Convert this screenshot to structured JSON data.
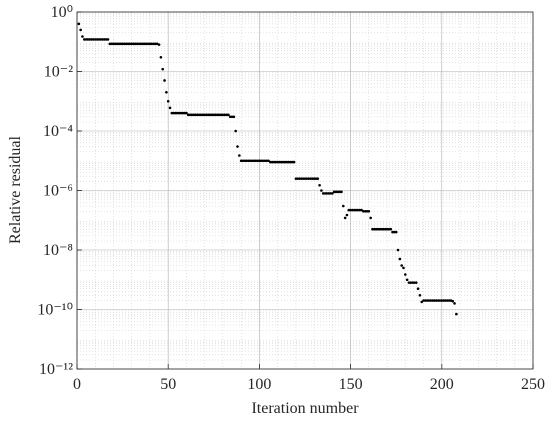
{
  "chart_data": {
    "type": "scatter",
    "xlabel": "Iteration number",
    "ylabel": "Relative residual",
    "color": "#000000",
    "log_y": true,
    "grid": true,
    "minor_grid": true,
    "xlim": [
      0,
      250
    ],
    "xticks": [
      0,
      50,
      100,
      150,
      200,
      250
    ],
    "ylim": [
      1e-12,
      1
    ],
    "yticks": [
      {
        "value": 1,
        "label": "10⁰"
      },
      {
        "value": 0.01,
        "label": "10⁻²"
      },
      {
        "value": 0.0001,
        "label": "10⁻⁴"
      },
      {
        "value": 1e-06,
        "label": "10⁻⁶"
      },
      {
        "value": 1e-08,
        "label": "10⁻⁸"
      },
      {
        "value": 1e-10,
        "label": "10⁻¹⁰"
      },
      {
        "value": 1e-12,
        "label": "10⁻¹²"
      }
    ],
    "x": [
      1,
      2,
      3,
      4,
      5,
      6,
      7,
      8,
      9,
      10,
      11,
      12,
      13,
      14,
      15,
      16,
      17,
      18,
      19,
      20,
      21,
      22,
      23,
      24,
      25,
      26,
      27,
      28,
      29,
      30,
      31,
      32,
      33,
      34,
      35,
      36,
      37,
      38,
      39,
      40,
      41,
      42,
      43,
      44,
      45,
      46,
      47,
      48,
      49,
      50,
      51,
      52,
      53,
      54,
      55,
      56,
      57,
      58,
      59,
      60,
      61,
      62,
      63,
      64,
      65,
      66,
      67,
      68,
      69,
      70,
      71,
      72,
      73,
      74,
      75,
      76,
      77,
      78,
      79,
      80,
      81,
      82,
      83,
      84,
      85,
      86,
      87,
      88,
      89,
      90,
      91,
      92,
      93,
      94,
      95,
      96,
      97,
      98,
      99,
      100,
      101,
      102,
      103,
      104,
      105,
      106,
      107,
      108,
      109,
      110,
      111,
      112,
      113,
      114,
      115,
      116,
      117,
      118,
      119,
      120,
      121,
      122,
      123,
      124,
      125,
      126,
      127,
      128,
      129,
      130,
      131,
      132,
      133,
      134,
      135,
      136,
      137,
      138,
      139,
      140,
      141,
      142,
      143,
      144,
      145,
      146,
      147,
      148,
      149,
      150,
      151,
      152,
      153,
      154,
      155,
      156,
      157,
      158,
      159,
      160,
      161,
      162,
      163,
      164,
      165,
      166,
      167,
      168,
      169,
      170,
      171,
      172,
      173,
      174,
      175,
      176,
      177,
      178,
      179,
      180,
      181,
      182,
      183,
      184,
      185,
      186,
      187,
      188,
      189,
      190,
      191,
      192,
      193,
      194,
      195,
      196,
      197,
      198,
      199,
      200,
      201,
      202,
      203,
      204,
      205,
      206,
      207,
      208
    ],
    "values": [
      0.4,
      0.25,
      0.15,
      0.12,
      0.12,
      0.12,
      0.12,
      0.12,
      0.12,
      0.12,
      0.12,
      0.12,
      0.12,
      0.12,
      0.12,
      0.12,
      0.12,
      0.085,
      0.085,
      0.085,
      0.085,
      0.085,
      0.085,
      0.085,
      0.085,
      0.085,
      0.085,
      0.085,
      0.085,
      0.085,
      0.085,
      0.085,
      0.085,
      0.085,
      0.085,
      0.085,
      0.085,
      0.085,
      0.085,
      0.085,
      0.085,
      0.085,
      0.085,
      0.085,
      0.08,
      0.03,
      0.012,
      0.005,
      0.002,
      0.001,
      0.0006,
      0.0004,
      0.0004,
      0.0004,
      0.0004,
      0.0004,
      0.0004,
      0.0004,
      0.0004,
      0.0004,
      0.00035,
      0.00035,
      0.00035,
      0.00035,
      0.00035,
      0.00035,
      0.00035,
      0.00035,
      0.00035,
      0.00035,
      0.00035,
      0.00035,
      0.00035,
      0.00035,
      0.00035,
      0.00035,
      0.00035,
      0.00035,
      0.00035,
      0.00035,
      0.00035,
      0.00035,
      0.00035,
      0.0003,
      0.0003,
      0.0003,
      0.0001,
      3e-05,
      1.5e-05,
      1e-05,
      1e-05,
      1e-05,
      1e-05,
      1e-05,
      1e-05,
      1e-05,
      1e-05,
      1e-05,
      1e-05,
      1e-05,
      1e-05,
      1e-05,
      1e-05,
      1e-05,
      1e-05,
      9e-06,
      9e-06,
      9e-06,
      9e-06,
      9e-06,
      9e-06,
      9e-06,
      9e-06,
      9e-06,
      9e-06,
      9e-06,
      9e-06,
      9e-06,
      9e-06,
      2.5e-06,
      2.5e-06,
      2.5e-06,
      2.5e-06,
      2.5e-06,
      2.5e-06,
      2.5e-06,
      2.5e-06,
      2.5e-06,
      2.5e-06,
      2.5e-06,
      2.5e-06,
      2.5e-06,
      1.5e-06,
      1e-06,
      8e-07,
      8e-07,
      8e-07,
      8e-07,
      8e-07,
      8e-07,
      9e-07,
      9e-07,
      9e-07,
      9e-07,
      9e-07,
      3e-07,
      1.2e-07,
      1.5e-07,
      2.2e-07,
      2.2e-07,
      2.2e-07,
      2.2e-07,
      2.2e-07,
      2.2e-07,
      2.2e-07,
      2.2e-07,
      2e-07,
      2e-07,
      2e-07,
      2e-07,
      1.2e-07,
      5e-08,
      5e-08,
      5e-08,
      5e-08,
      5e-08,
      5e-08,
      5e-08,
      5e-08,
      5e-08,
      5e-08,
      5e-08,
      4e-08,
      4e-08,
      4e-08,
      1e-08,
      5e-09,
      3e-09,
      2.5e-09,
      1.5e-09,
      1e-09,
      8e-10,
      8e-10,
      8e-10,
      8e-10,
      8e-10,
      5e-10,
      3e-10,
      1.8e-10,
      2e-10,
      2e-10,
      2e-10,
      2e-10,
      2e-10,
      2e-10,
      2e-10,
      2e-10,
      2e-10,
      2e-10,
      2e-10,
      2e-10,
      2e-10,
      2e-10,
      2e-10,
      2e-10,
      1.9e-10,
      1.6e-10,
      7e-11
    ]
  }
}
